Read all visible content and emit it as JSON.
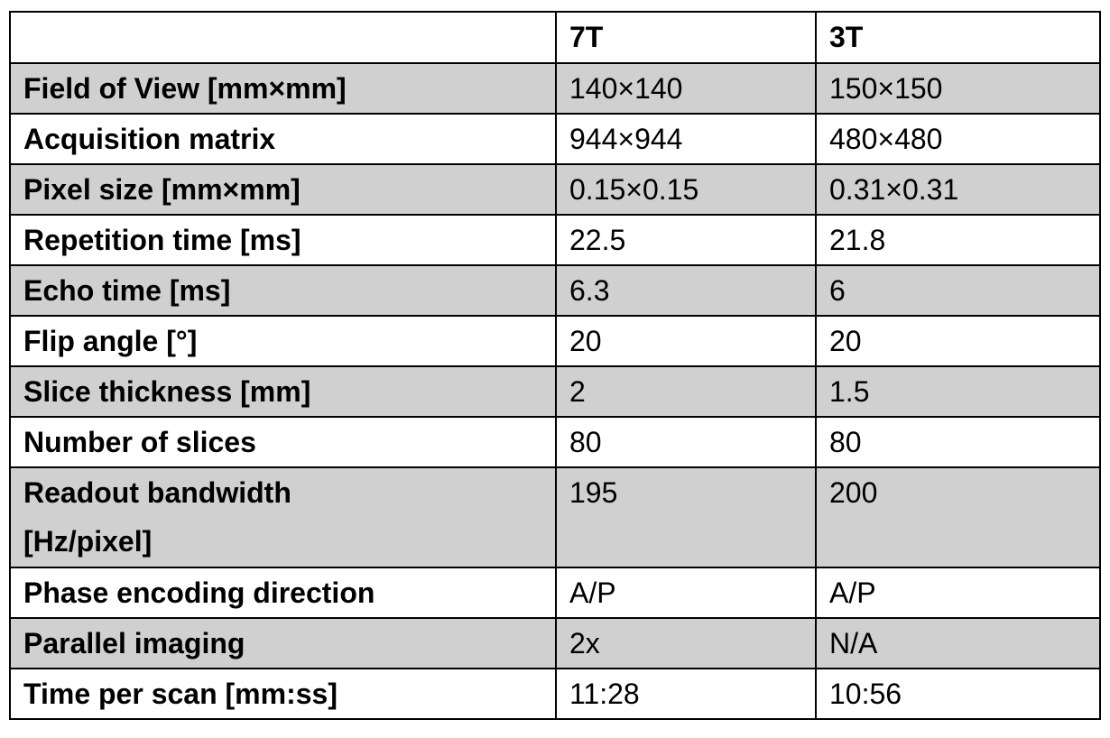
{
  "table": {
    "columns": [
      "7T",
      "3T"
    ],
    "rows": [
      [
        "Field of View [mm×mm]",
        "140×140",
        "150×150"
      ],
      [
        "Acquisition matrix",
        "944×944",
        "480×480"
      ],
      [
        "Pixel size [mm×mm]",
        "0.15×0.15",
        "0.31×0.31"
      ],
      [
        "Repetition time [ms]",
        "22.5",
        "21.8"
      ],
      [
        "Echo time [ms]",
        "6.3",
        "6"
      ],
      [
        "Flip angle [°]",
        "20",
        "20"
      ],
      [
        "Slice thickness [mm]",
        "2",
        "1.5"
      ],
      [
        "Number of slices",
        "80",
        "80"
      ],
      [
        "Readout bandwidth [Hz/pixel]",
        "195",
        "200"
      ],
      [
        "Phase encoding direction",
        "A/P",
        "A/P"
      ],
      [
        "Parallel imaging",
        "2x",
        "N/A"
      ],
      [
        "Time per scan [mm:ss]",
        "11:28",
        "10:56"
      ]
    ]
  }
}
